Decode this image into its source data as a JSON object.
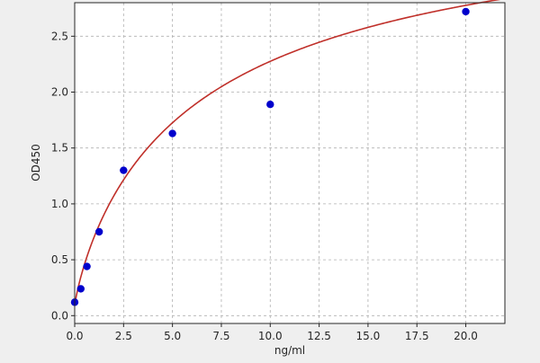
{
  "chart_data": {
    "type": "scatter",
    "title": "",
    "xlabel": "ng/ml",
    "ylabel": "OD450",
    "xlim": [
      0,
      22
    ],
    "ylim": [
      -0.07,
      2.8
    ],
    "xticks": [
      0.0,
      2.5,
      5.0,
      7.5,
      10.0,
      12.5,
      15.0,
      17.5,
      20.0
    ],
    "yticks": [
      0.0,
      0.5,
      1.0,
      1.5,
      2.0,
      2.5
    ],
    "grid": true,
    "legend": "none",
    "series": [
      {
        "kind": "points",
        "color": "#0000cc",
        "x": [
          0,
          0.3125,
          0.625,
          1.25,
          2.5,
          5,
          10,
          20
        ],
        "y": [
          0.12,
          0.24,
          0.44,
          0.75,
          1.3,
          1.63,
          1.89,
          2.72
        ]
      },
      {
        "kind": "fit-curve",
        "color": "#c0302a",
        "model": "four-parameter-logistic",
        "params": {
          "a": 0.09,
          "b": 0.85,
          "c": 6.8,
          "d": 3.85
        }
      }
    ]
  },
  "colors": {
    "background": "#efefef",
    "plot_area": "#ffffff",
    "grid": "#b0b0b0"
  }
}
